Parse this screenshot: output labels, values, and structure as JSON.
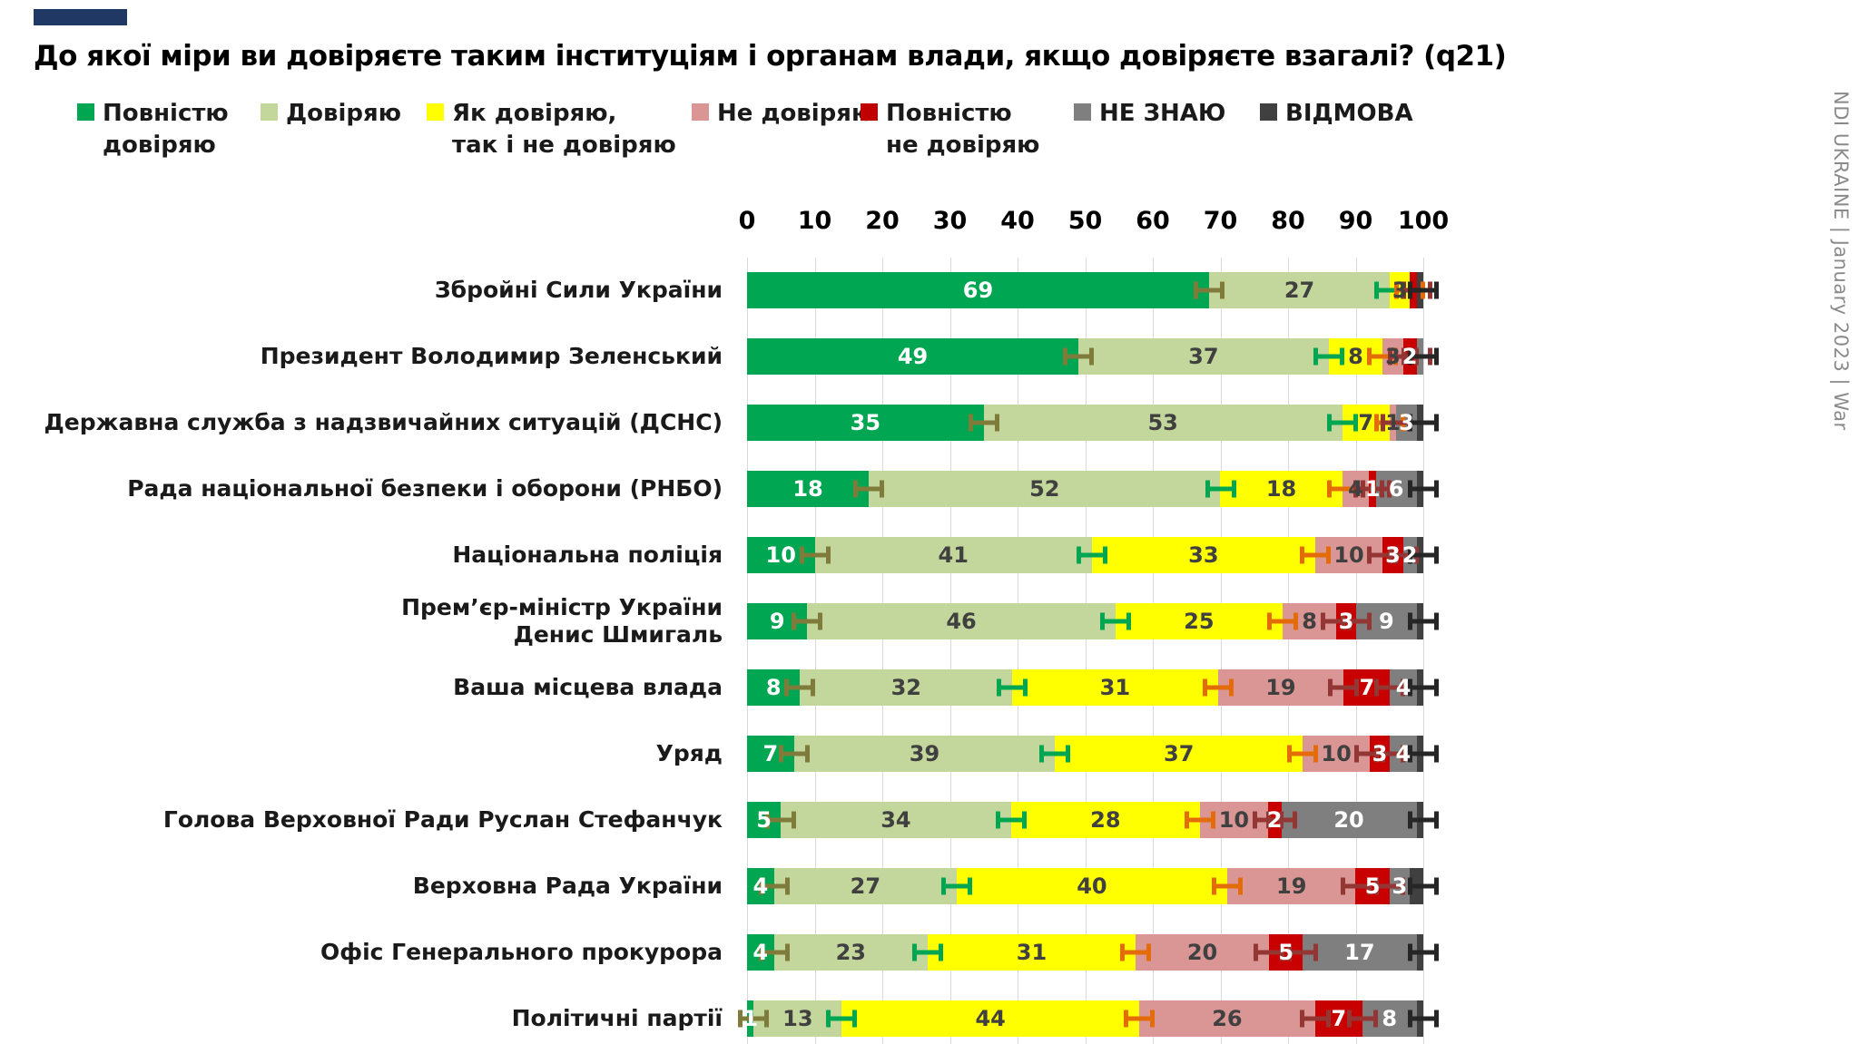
{
  "accent_color": "#1f3864",
  "title": "До якої міри ви довіряєте таким інституціям і органам влади, якщо довіряєте взагалі? (q21)",
  "watermark": "NDI UKRAINE | January 2023 | War",
  "legend": [
    {
      "lines": "Повністю\nдовіряю",
      "color": "#00a651"
    },
    {
      "lines": "Довіряю",
      "color": "#c3d69b"
    },
    {
      "lines": "Як довіряю,\nтак і не довіряю",
      "color": "#ffff00"
    },
    {
      "lines": "Не довіряю",
      "color": "#d99694"
    },
    {
      "lines": "Повністю\nне довіряю",
      "color": "#c00000"
    },
    {
      "lines": "НЕ ЗНАЮ",
      "color": "#7f7f7f"
    },
    {
      "lines": "ВІДМОВА",
      "color": "#404040"
    }
  ],
  "axis": {
    "ticks": [
      0,
      10,
      20,
      30,
      40,
      50,
      60,
      70,
      80,
      90,
      100
    ],
    "min": 0,
    "max": 100
  },
  "chart_data": {
    "type": "bar",
    "orientation": "horizontal",
    "stacked": true,
    "title": "До якої міри ви довіряєте таким інституціям і органам влади, якщо довіряєте взагалі? (q21)",
    "xlabel": "",
    "ylabel": "",
    "xlim": [
      0,
      100
    ],
    "grid": true,
    "legend_position": "top",
    "series_names": [
      "Повністю довіряю",
      "Довіряю",
      "Як довіряю, так і не довіряю",
      "Не довіряю",
      "Повністю не довіряю",
      "НЕ ЗНАЮ",
      "ВІДМОВА"
    ],
    "series_colors": [
      "#00a651",
      "#c3d69b",
      "#ffff00",
      "#d99694",
      "#c90000",
      "#7f7f7f",
      "#404040"
    ],
    "label_colors": [
      "#ffffff",
      "#404040",
      "#404040",
      "#404040",
      "#ffffff",
      "#ffffff",
      "#ffffff"
    ],
    "whisker_colors": [
      "#7f7b3a",
      "#00a651",
      "#e36c09",
      "#943634",
      "#943634"
    ],
    "whisker_end_color": "#262626",
    "categories": [
      "Збройні Сили України",
      "Президент Володимир Зеленський",
      "Державна служба з надзвичайних ситуацій (ДСНС)",
      "Рада національної безпеки і оборони (РНБО)",
      "Національна поліція",
      "Прем’єр-міністр України\nДенис Шмигаль",
      "Ваша місцева влада",
      "Уряд",
      "Голова Верховної Ради Руслан Стефанчук",
      "Верховна Рада України",
      "Офіс Генерального прокурора",
      "Політичні партії"
    ],
    "rows": [
      {
        "category": "Збройні Сили України",
        "values": [
          69,
          27,
          3,
          0,
          1,
          0,
          1
        ],
        "labels": [
          "69",
          "27",
          "3",
          "",
          "",
          "",
          ""
        ]
      },
      {
        "category": "Президент Володимир Зеленський",
        "values": [
          49,
          37,
          8,
          3,
          2,
          1,
          0
        ],
        "labels": [
          "49",
          "37",
          "8",
          "3",
          "2",
          "",
          ""
        ]
      },
      {
        "category": "Державна служба з надзвичайних ситуацій (ДСНС)",
        "values": [
          35,
          53,
          7,
          1,
          0,
          3,
          1
        ],
        "labels": [
          "35",
          "53",
          "7",
          "1",
          "",
          "3",
          ""
        ]
      },
      {
        "category": "Рада національної безпеки і оборони (РНБО)",
        "values": [
          18,
          52,
          18,
          4,
          1,
          6,
          1
        ],
        "labels": [
          "18",
          "52",
          "18",
          "4",
          "1",
          "6",
          ""
        ]
      },
      {
        "category": "Національна поліція",
        "values": [
          10,
          41,
          33,
          10,
          3,
          2,
          1
        ],
        "labels": [
          "10",
          "41",
          "33",
          "10",
          "3",
          "2",
          ""
        ]
      },
      {
        "category": "Прем’єр-міністр України\nДенис Шмигаль",
        "values": [
          9,
          46,
          25,
          8,
          3,
          9,
          1
        ],
        "labels": [
          "9",
          "46",
          "25",
          "8",
          "3",
          "9",
          ""
        ]
      },
      {
        "category": "Ваша місцева влада",
        "values": [
          8,
          32,
          31,
          19,
          7,
          4,
          1
        ],
        "labels": [
          "8",
          "32",
          "31",
          "19",
          "7",
          "4",
          ""
        ]
      },
      {
        "category": "Уряд",
        "values": [
          7,
          39,
          37,
          10,
          3,
          4,
          1
        ],
        "labels": [
          "7",
          "39",
          "37",
          "10",
          "3",
          "4",
          ""
        ]
      },
      {
        "category": "Голова Верховної Ради Руслан Стефанчук",
        "values": [
          5,
          34,
          28,
          10,
          2,
          20,
          1
        ],
        "labels": [
          "5",
          "34",
          "28",
          "10",
          "2",
          "20",
          ""
        ]
      },
      {
        "category": "Верховна Рада України",
        "values": [
          4,
          27,
          40,
          19,
          5,
          3,
          2
        ],
        "labels": [
          "4",
          "27",
          "40",
          "19",
          "5",
          "3",
          ""
        ]
      },
      {
        "category": "Офіс Генерального прокурора",
        "values": [
          4,
          23,
          31,
          20,
          5,
          17,
          1
        ],
        "labels": [
          "4",
          "23",
          "31",
          "20",
          "5",
          "17",
          ""
        ]
      },
      {
        "category": "Політичні партії",
        "values": [
          1,
          13,
          44,
          26,
          7,
          8,
          1
        ],
        "labels": [
          "1",
          "13",
          "44",
          "26",
          "7",
          "8",
          ""
        ]
      }
    ]
  }
}
